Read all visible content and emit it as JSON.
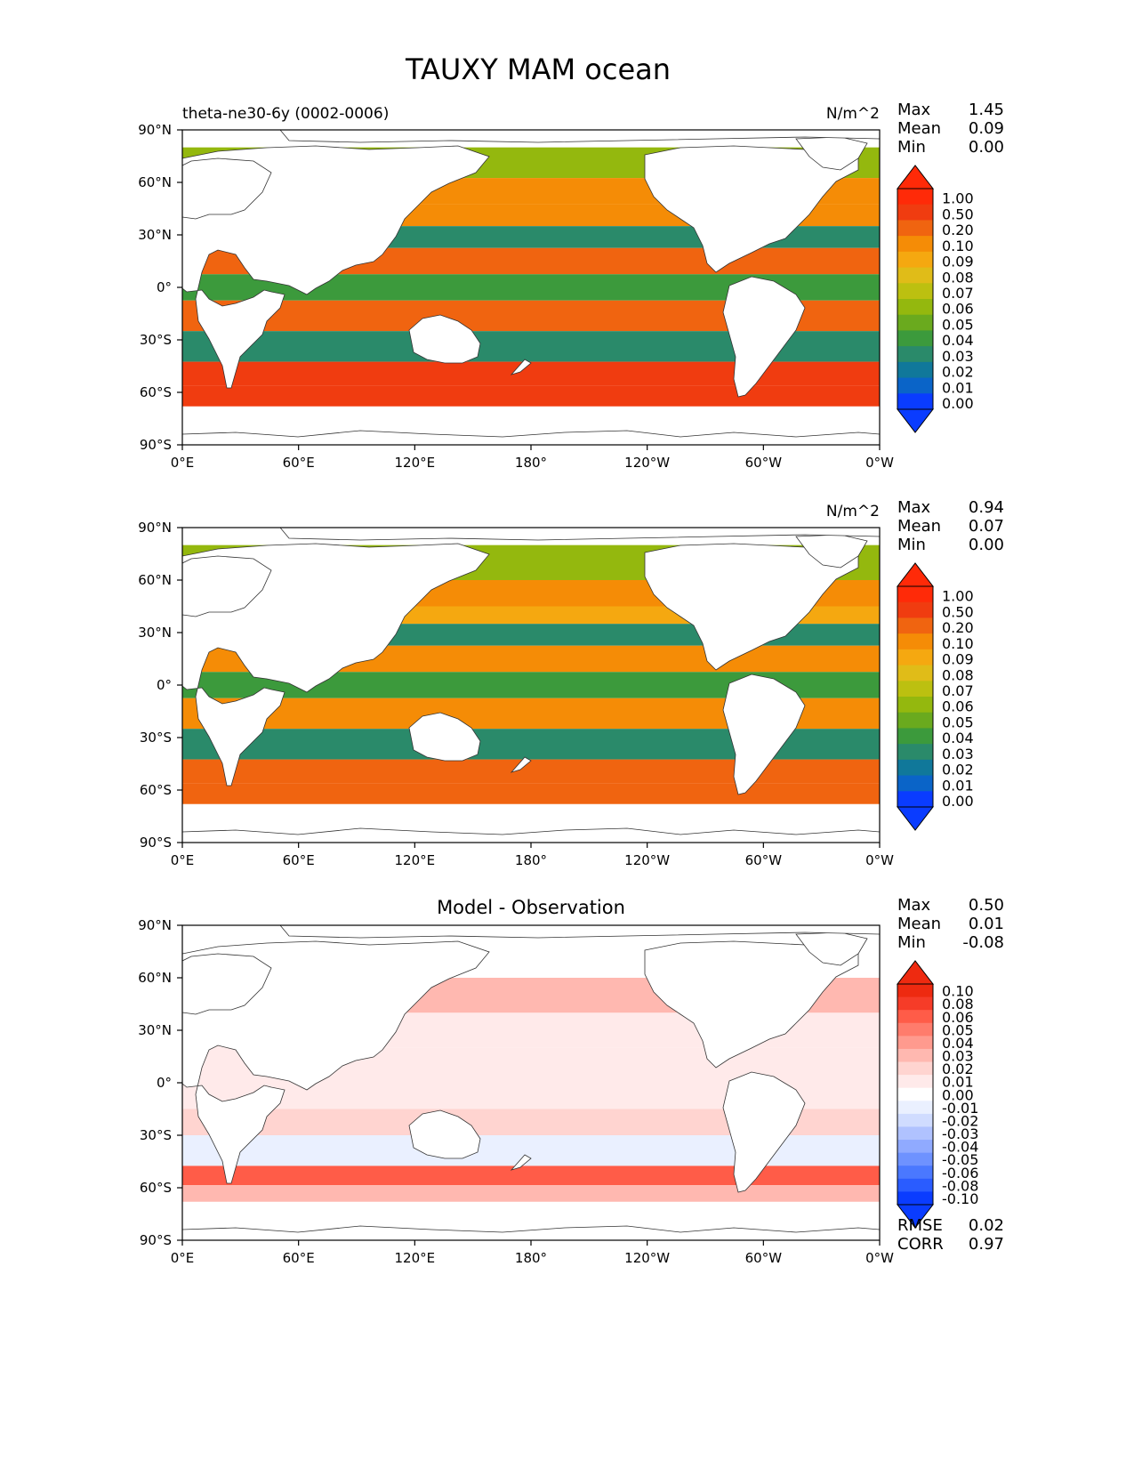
{
  "figure_title": "TAUXY MAM ocean",
  "colors": {
    "land": "#ffffff",
    "coast": "#333333",
    "ocean_missing": "#ffffff",
    "seq_scale": [
      "#0a3cff",
      "#0a64c8",
      "#10789a",
      "#2a8a6a",
      "#3c9a3c",
      "#6aaa1e",
      "#94b80e",
      "#bcc010",
      "#e0bc18",
      "#f5a810",
      "#f58c06",
      "#f06410",
      "#f03c10",
      "#ff2a08"
    ],
    "div_scale": [
      "#0a3cff",
      "#2a5cff",
      "#4a78ff",
      "#6e92ff",
      "#90aaff",
      "#b0c2ff",
      "#d0dcff",
      "#eaf0ff",
      "#ffffff",
      "#ffeaea",
      "#ffd4d0",
      "#ffb8b0",
      "#ff9a8e",
      "#ff7c6c",
      "#ff5c48",
      "#f63c28",
      "#ee2a10"
    ]
  },
  "chart_data": [
    {
      "type": "heatmap",
      "subtitle_left": "theta-ne30-6y (0002-0006)",
      "title": "",
      "units": "N/m^2",
      "stats": [
        {
          "label": "Max",
          "value": "1.45"
        },
        {
          "label": "Mean",
          "value": "0.09"
        },
        {
          "label": "Min",
          "value": "0.00"
        }
      ],
      "colorbar_labels": [
        "1.00",
        "0.50",
        "0.20",
        "0.10",
        "0.09",
        "0.08",
        "0.07",
        "0.06",
        "0.05",
        "0.04",
        "0.03",
        "0.02",
        "0.01",
        "0.00"
      ],
      "x_ticks": [
        "0°E",
        "60°E",
        "120°E",
        "180°",
        "120°W",
        "60°W",
        "0°W"
      ],
      "y_ticks": [
        "90°N",
        "60°N",
        "30°N",
        "0°",
        "30°S",
        "60°S",
        "90°S"
      ],
      "xlim": [
        0,
        360
      ],
      "ylim": [
        -90,
        90
      ],
      "field_bands": [
        {
          "lat": 70,
          "value": 0.05
        },
        {
          "lat": 55,
          "value": 0.09
        },
        {
          "lat": 40,
          "value": 0.09
        },
        {
          "lat": 30,
          "value": 0.02
        },
        {
          "lat": 15,
          "value": 0.1
        },
        {
          "lat": 0,
          "value": 0.03
        },
        {
          "lat": -15,
          "value": 0.1
        },
        {
          "lat": -35,
          "value": 0.02
        },
        {
          "lat": -50,
          "value": 0.2
        },
        {
          "lat": -62,
          "value": 0.2
        }
      ]
    },
    {
      "type": "heatmap",
      "subtitle_left": "",
      "title": "",
      "units": "N/m^2",
      "stats": [
        {
          "label": "Max",
          "value": "0.94"
        },
        {
          "label": "Mean",
          "value": "0.07"
        },
        {
          "label": "Min",
          "value": "0.00"
        }
      ],
      "colorbar_labels": [
        "1.00",
        "0.50",
        "0.20",
        "0.10",
        "0.09",
        "0.08",
        "0.07",
        "0.06",
        "0.05",
        "0.04",
        "0.03",
        "0.02",
        "0.01",
        "0.00"
      ],
      "x_ticks": [
        "0°E",
        "60°E",
        "120°E",
        "180°",
        "120°W",
        "60°W",
        "0°W"
      ],
      "y_ticks": [
        "90°N",
        "60°N",
        "30°N",
        "0°",
        "30°S",
        "60°S",
        "90°S"
      ],
      "xlim": [
        0,
        360
      ],
      "ylim": [
        -90,
        90
      ],
      "field_bands": [
        {
          "lat": 70,
          "value": 0.05
        },
        {
          "lat": 50,
          "value": 0.09
        },
        {
          "lat": 40,
          "value": 0.08
        },
        {
          "lat": 30,
          "value": 0.02
        },
        {
          "lat": 15,
          "value": 0.09
        },
        {
          "lat": 0,
          "value": 0.03
        },
        {
          "lat": -15,
          "value": 0.09
        },
        {
          "lat": -35,
          "value": 0.02
        },
        {
          "lat": -50,
          "value": 0.1
        },
        {
          "lat": -62,
          "value": 0.1
        }
      ]
    },
    {
      "type": "heatmap",
      "subtitle_left": "",
      "title": "Model - Observation",
      "units": "",
      "stats": [
        {
          "label": "Max",
          "value": "0.50"
        },
        {
          "label": "Mean",
          "value": "0.01"
        },
        {
          "label": "Min",
          "value": "-0.08"
        }
      ],
      "colorbar_labels": [
        "0.10",
        "0.08",
        "0.06",
        "0.05",
        "0.04",
        "0.03",
        "0.02",
        "0.01",
        "0.00",
        "-0.01",
        "-0.02",
        "-0.03",
        "-0.04",
        "-0.05",
        "-0.06",
        "-0.08",
        "-0.10"
      ],
      "x_ticks": [
        "0°E",
        "60°E",
        "120°E",
        "180°",
        "120°W",
        "60°W",
        "0°W"
      ],
      "y_ticks": [
        "90°N",
        "60°N",
        "30°N",
        "0°",
        "30°S",
        "60°S",
        "90°S"
      ],
      "xlim": [
        0,
        360
      ],
      "ylim": [
        -90,
        90
      ],
      "field_bands": [
        {
          "lat": 70,
          "value": 0.0
        },
        {
          "lat": 50,
          "value": 0.03
        },
        {
          "lat": 30,
          "value": 0.01
        },
        {
          "lat": 10,
          "value": 0.01
        },
        {
          "lat": -10,
          "value": 0.01
        },
        {
          "lat": -20,
          "value": 0.02
        },
        {
          "lat": -40,
          "value": -0.01
        },
        {
          "lat": -55,
          "value": 0.06
        },
        {
          "lat": -62,
          "value": 0.03
        }
      ],
      "metrics": [
        {
          "label": "RMSE",
          "value": "0.02"
        },
        {
          "label": "CORR",
          "value": "0.97"
        }
      ]
    }
  ]
}
